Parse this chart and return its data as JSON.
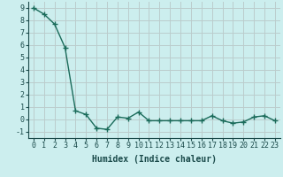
{
  "x": [
    0,
    1,
    2,
    3,
    4,
    5,
    6,
    7,
    8,
    9,
    10,
    11,
    12,
    13,
    14,
    15,
    16,
    17,
    18,
    19,
    20,
    21,
    22,
    23
  ],
  "y": [
    9.0,
    8.5,
    7.7,
    5.8,
    0.7,
    0.4,
    -0.7,
    -0.8,
    0.2,
    0.1,
    0.6,
    -0.1,
    -0.1,
    -0.1,
    -0.1,
    -0.1,
    -0.1,
    0.3,
    -0.1,
    -0.3,
    -0.2,
    0.2,
    0.3,
    -0.1
  ],
  "line_color": "#1a6b5a",
  "marker": "+",
  "marker_size": 4,
  "bg_color": "#cceeee",
  "grid_color": "#bbcccc",
  "xlabel": "Humidex (Indice chaleur)",
  "xlabel_fontsize": 7,
  "ylim": [
    -1.5,
    9.5
  ],
  "xlim": [
    -0.5,
    23.5
  ],
  "yticks": [
    -1,
    0,
    1,
    2,
    3,
    4,
    5,
    6,
    7,
    8,
    9
  ],
  "xticks": [
    0,
    1,
    2,
    3,
    4,
    5,
    6,
    7,
    8,
    9,
    10,
    11,
    12,
    13,
    14,
    15,
    16,
    17,
    18,
    19,
    20,
    21,
    22,
    23
  ],
  "tick_fontsize": 6,
  "line_width": 1.0
}
